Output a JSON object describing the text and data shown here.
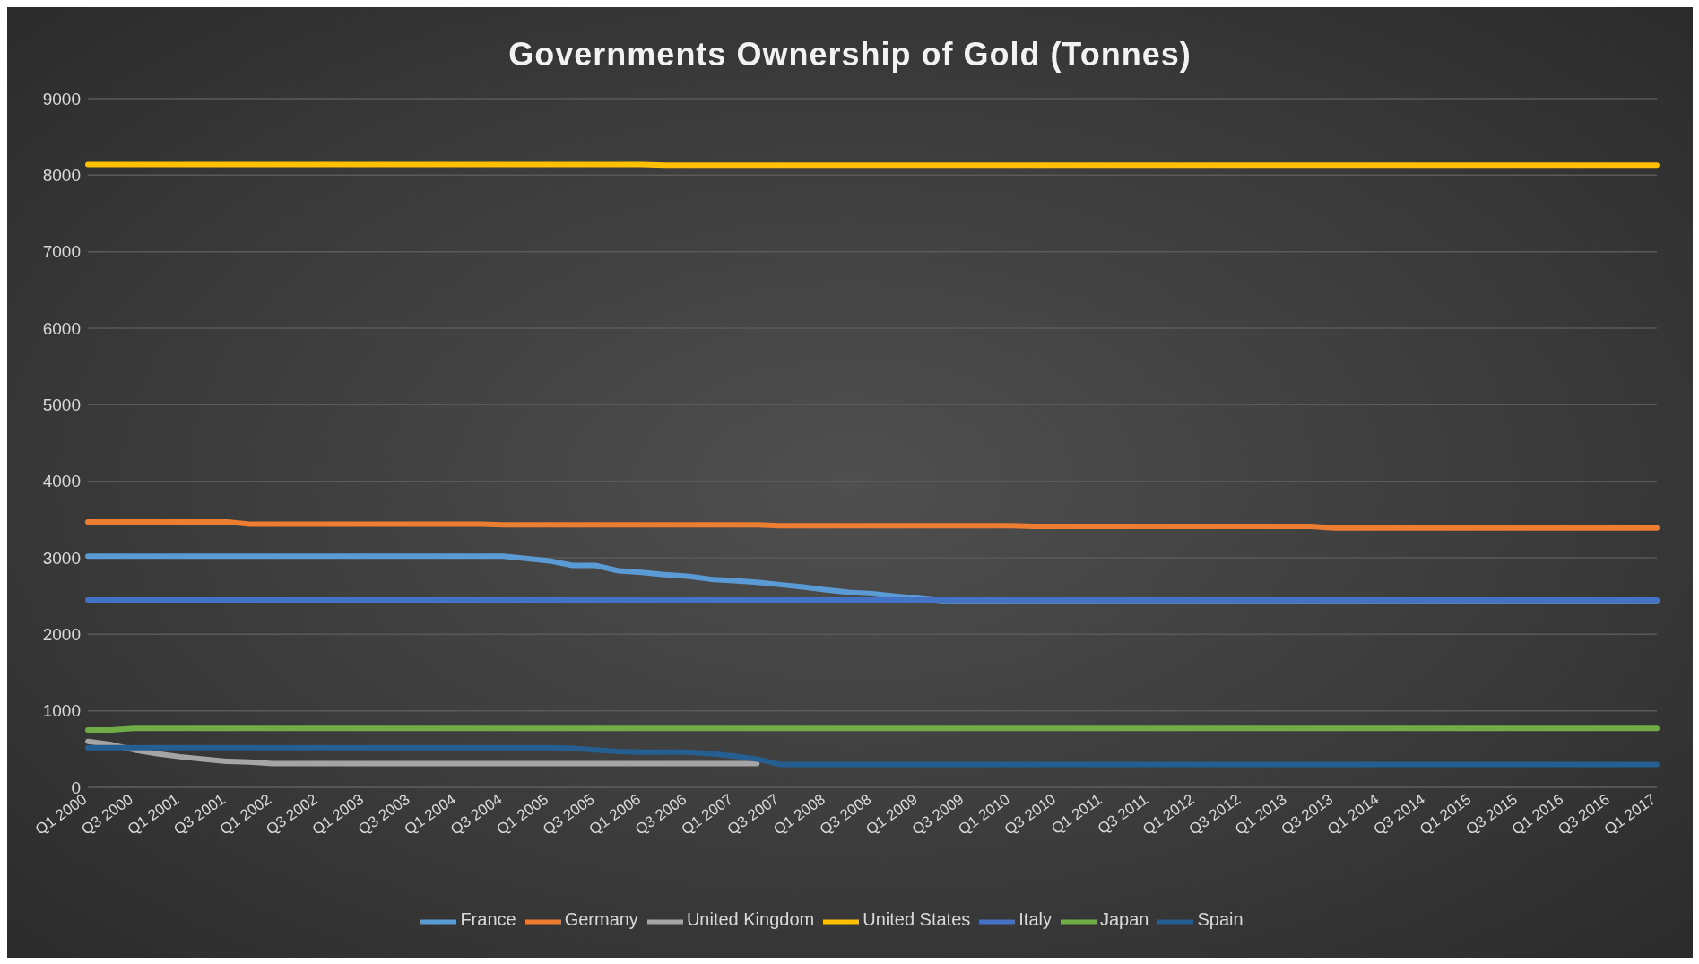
{
  "chart_data": {
    "type": "line",
    "title": "Governments Ownership of Gold (Tonnes)",
    "categories": [
      "Q1 2000",
      null,
      "Q3 2000",
      null,
      "Q1 2001",
      null,
      "Q3 2001",
      null,
      "Q1 2002",
      null,
      "Q3 2002",
      null,
      "Q1 2003",
      null,
      "Q3 2003",
      null,
      "Q1 2004",
      null,
      "Q3 2004",
      null,
      "Q1 2005",
      null,
      "Q3 2005",
      null,
      "Q1 2006",
      null,
      "Q3 2006",
      null,
      "Q1 2007",
      null,
      "Q3 2007",
      null,
      "Q1 2008",
      null,
      "Q3 2008",
      null,
      "Q1 2009",
      null,
      "Q3 2009",
      null,
      "Q1 2010",
      null,
      "Q3 2010",
      null,
      "Q1 2011",
      null,
      "Q3 2011",
      null,
      "Q1 2012",
      null,
      "Q3 2012",
      null,
      "Q1 2013",
      null,
      "Q3 2013",
      null,
      "Q1 2014",
      null,
      "Q3 2014",
      null,
      "Q1 2015",
      null,
      "Q3 2015",
      null,
      "Q1 2016",
      null,
      "Q3 2016",
      null,
      "Q1 2017"
    ],
    "series": [
      {
        "name": "France",
        "color": "#5b9bd5",
        "values": [
          3020,
          3020,
          3020,
          3020,
          3020,
          3020,
          3020,
          3020,
          3020,
          3020,
          3020,
          3020,
          3020,
          3020,
          3020,
          3020,
          3020,
          3020,
          3020,
          2990,
          2960,
          2900,
          2900,
          2830,
          2810,
          2780,
          2760,
          2720,
          2700,
          2680,
          2650,
          2620,
          2580,
          2550,
          2530,
          2500,
          2470,
          2440,
          2440,
          2440,
          2440,
          2440,
          2440,
          2440,
          2440,
          2440,
          2440,
          2440,
          2440,
          2440,
          2440,
          2440,
          2440,
          2440,
          2440,
          2440,
          2440,
          2440,
          2440,
          2440,
          2440,
          2440,
          2440,
          2440,
          2440,
          2440,
          2440,
          2440,
          2440
        ]
      },
      {
        "name": "Germany",
        "color": "#ed7d31",
        "values": [
          3470,
          3470,
          3470,
          3470,
          3470,
          3470,
          3470,
          3440,
          3440,
          3440,
          3440,
          3440,
          3440,
          3440,
          3440,
          3440,
          3440,
          3440,
          3430,
          3430,
          3430,
          3430,
          3430,
          3430,
          3430,
          3430,
          3430,
          3430,
          3430,
          3430,
          3420,
          3420,
          3420,
          3420,
          3420,
          3420,
          3420,
          3420,
          3420,
          3420,
          3420,
          3410,
          3410,
          3410,
          3410,
          3410,
          3410,
          3410,
          3410,
          3410,
          3410,
          3410,
          3410,
          3410,
          3390,
          3390,
          3390,
          3390,
          3390,
          3390,
          3390,
          3390,
          3390,
          3390,
          3390,
          3390,
          3390,
          3390,
          3390
        ]
      },
      {
        "name": "United Kingdom",
        "color": "#a5a5a5",
        "values": [
          600,
          560,
          490,
          440,
          400,
          370,
          340,
          330,
          310,
          310,
          310,
          310,
          310,
          310,
          310,
          310,
          310,
          310,
          310,
          310,
          310,
          310,
          310,
          310,
          310,
          310,
          310,
          310,
          310,
          310,
          null,
          null,
          null,
          null,
          null,
          null,
          null,
          null,
          null,
          null,
          null,
          null,
          null,
          null,
          null,
          null,
          null,
          null,
          null,
          null,
          null,
          null,
          null,
          null,
          null,
          null,
          null,
          null,
          null,
          null,
          null,
          null,
          null,
          null,
          null,
          null,
          null,
          null,
          null
        ]
      },
      {
        "name": "United States",
        "color": "#ffc000",
        "values": [
          8140,
          8140,
          8140,
          8140,
          8140,
          8140,
          8140,
          8140,
          8140,
          8140,
          8140,
          8140,
          8140,
          8140,
          8140,
          8140,
          8140,
          8140,
          8140,
          8140,
          8140,
          8140,
          8140,
          8140,
          8140,
          8130,
          8130,
          8130,
          8130,
          8130,
          8130,
          8130,
          8130,
          8130,
          8130,
          8130,
          8130,
          8130,
          8130,
          8130,
          8130,
          8130,
          8130,
          8130,
          8130,
          8130,
          8130,
          8130,
          8130,
          8130,
          8130,
          8130,
          8130,
          8130,
          8130,
          8130,
          8130,
          8130,
          8130,
          8130,
          8130,
          8130,
          8130,
          8130,
          8130,
          8130,
          8130,
          8130,
          8130
        ]
      },
      {
        "name": "Italy",
        "color": "#4472c4",
        "values": [
          2450,
          2450,
          2450,
          2450,
          2450,
          2450,
          2450,
          2450,
          2450,
          2450,
          2450,
          2450,
          2450,
          2450,
          2450,
          2450,
          2450,
          2450,
          2450,
          2450,
          2450,
          2450,
          2450,
          2450,
          2450,
          2450,
          2450,
          2450,
          2450,
          2450,
          2450,
          2450,
          2450,
          2450,
          2450,
          2450,
          2450,
          2450,
          2450,
          2450,
          2450,
          2450,
          2450,
          2450,
          2450,
          2450,
          2450,
          2450,
          2450,
          2450,
          2450,
          2450,
          2450,
          2450,
          2450,
          2450,
          2450,
          2450,
          2450,
          2450,
          2450,
          2450,
          2450,
          2450,
          2450,
          2450,
          2450,
          2450,
          2450
        ]
      },
      {
        "name": "Japan",
        "color": "#70ad47",
        "values": [
          750,
          750,
          770,
          770,
          770,
          770,
          770,
          770,
          770,
          770,
          770,
          770,
          770,
          770,
          770,
          770,
          770,
          770,
          770,
          770,
          770,
          770,
          770,
          770,
          770,
          770,
          770,
          770,
          770,
          770,
          770,
          770,
          770,
          770,
          770,
          770,
          770,
          770,
          770,
          770,
          770,
          770,
          770,
          770,
          770,
          770,
          770,
          770,
          770,
          770,
          770,
          770,
          770,
          770,
          770,
          770,
          770,
          770,
          770,
          770,
          770,
          770,
          770,
          770,
          770,
          770,
          770,
          770,
          770
        ]
      },
      {
        "name": "Spain",
        "color": "#255e91",
        "values": [
          520,
          520,
          520,
          520,
          520,
          520,
          520,
          520,
          520,
          520,
          520,
          520,
          520,
          520,
          520,
          520,
          520,
          520,
          520,
          520,
          520,
          510,
          490,
          470,
          460,
          460,
          460,
          440,
          410,
          370,
          300,
          300,
          300,
          300,
          300,
          300,
          300,
          300,
          300,
          300,
          300,
          300,
          300,
          300,
          300,
          300,
          300,
          300,
          300,
          300,
          300,
          300,
          300,
          300,
          300,
          300,
          300,
          300,
          300,
          300,
          300,
          300,
          300,
          300,
          300,
          300,
          300,
          300,
          300
        ]
      }
    ],
    "ylim": [
      0,
      9000
    ],
    "yticks": [
      0,
      1000,
      2000,
      3000,
      4000,
      5000,
      6000,
      7000,
      8000,
      9000
    ],
    "grid": "y",
    "legend": "bottom",
    "marker": "none",
    "line_style": "solid"
  }
}
